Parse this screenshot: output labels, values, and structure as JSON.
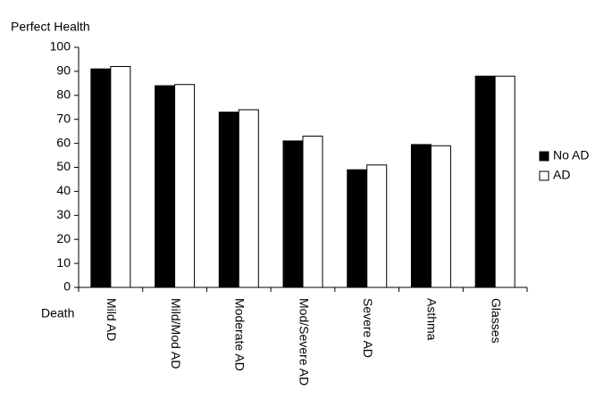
{
  "chart_data": {
    "type": "bar",
    "y_top_label": "Perfect Health",
    "y_bottom_label": "Death",
    "categories": [
      "Mild AD",
      "Mild/Mod AD",
      "Moderate AD",
      "Mod/Severe AD",
      "Severe AD",
      "Asthma",
      "Glasses"
    ],
    "series": [
      {
        "name": "No AD",
        "color": "#000000",
        "values": [
          91,
          84,
          73,
          61,
          49,
          59.5,
          88
        ]
      },
      {
        "name": "AD",
        "color": "#ffffff",
        "values": [
          92,
          84.5,
          74,
          63,
          51,
          59,
          88
        ]
      }
    ],
    "ylim": [
      0,
      100
    ],
    "yticks": [
      0,
      10,
      20,
      30,
      40,
      50,
      60,
      70,
      80,
      90,
      100
    ],
    "grid": false,
    "legend": "right"
  }
}
